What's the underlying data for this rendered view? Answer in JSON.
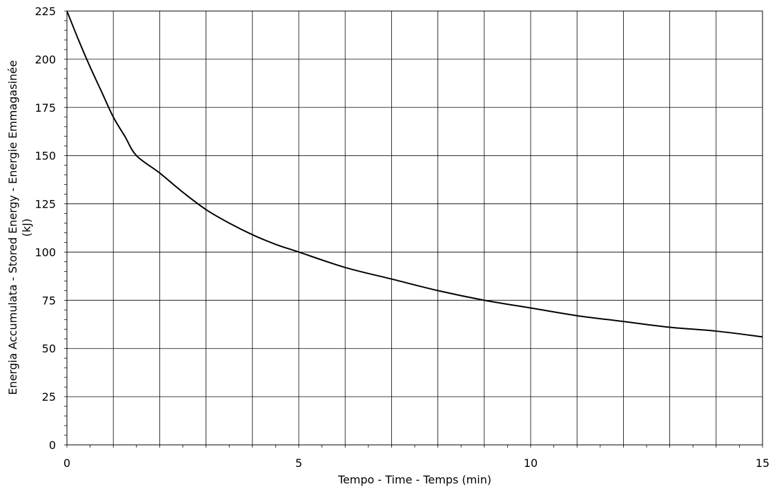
{
  "chart_data": {
    "type": "line",
    "title": "",
    "xlabel": "Tempo - Time - Temps    (min)",
    "ylabel_line1": "Energia Accumulata - Stored Energy - Energie Emmagasinée",
    "ylabel_line2": "(kJ)",
    "xlim": [
      0,
      15
    ],
    "ylim": [
      0,
      225
    ],
    "x_ticks": [
      0,
      5,
      10,
      15
    ],
    "y_ticks": [
      0,
      25,
      50,
      75,
      100,
      125,
      150,
      175,
      200,
      225
    ],
    "grid": true,
    "series": [
      {
        "x": [
          0,
          0.25,
          0.5,
          0.75,
          1,
          1.25,
          1.5,
          2,
          2.5,
          3,
          3.5,
          4,
          4.5,
          5,
          6,
          7,
          8,
          9,
          10,
          11,
          12,
          13,
          14,
          15
        ],
        "y": [
          225,
          210,
          196,
          183,
          170,
          160,
          150,
          141,
          131,
          122,
          115,
          109,
          104,
          100,
          92,
          86,
          80,
          75,
          71,
          67,
          64,
          61,
          59,
          56
        ],
        "color": "#000000"
      }
    ]
  }
}
